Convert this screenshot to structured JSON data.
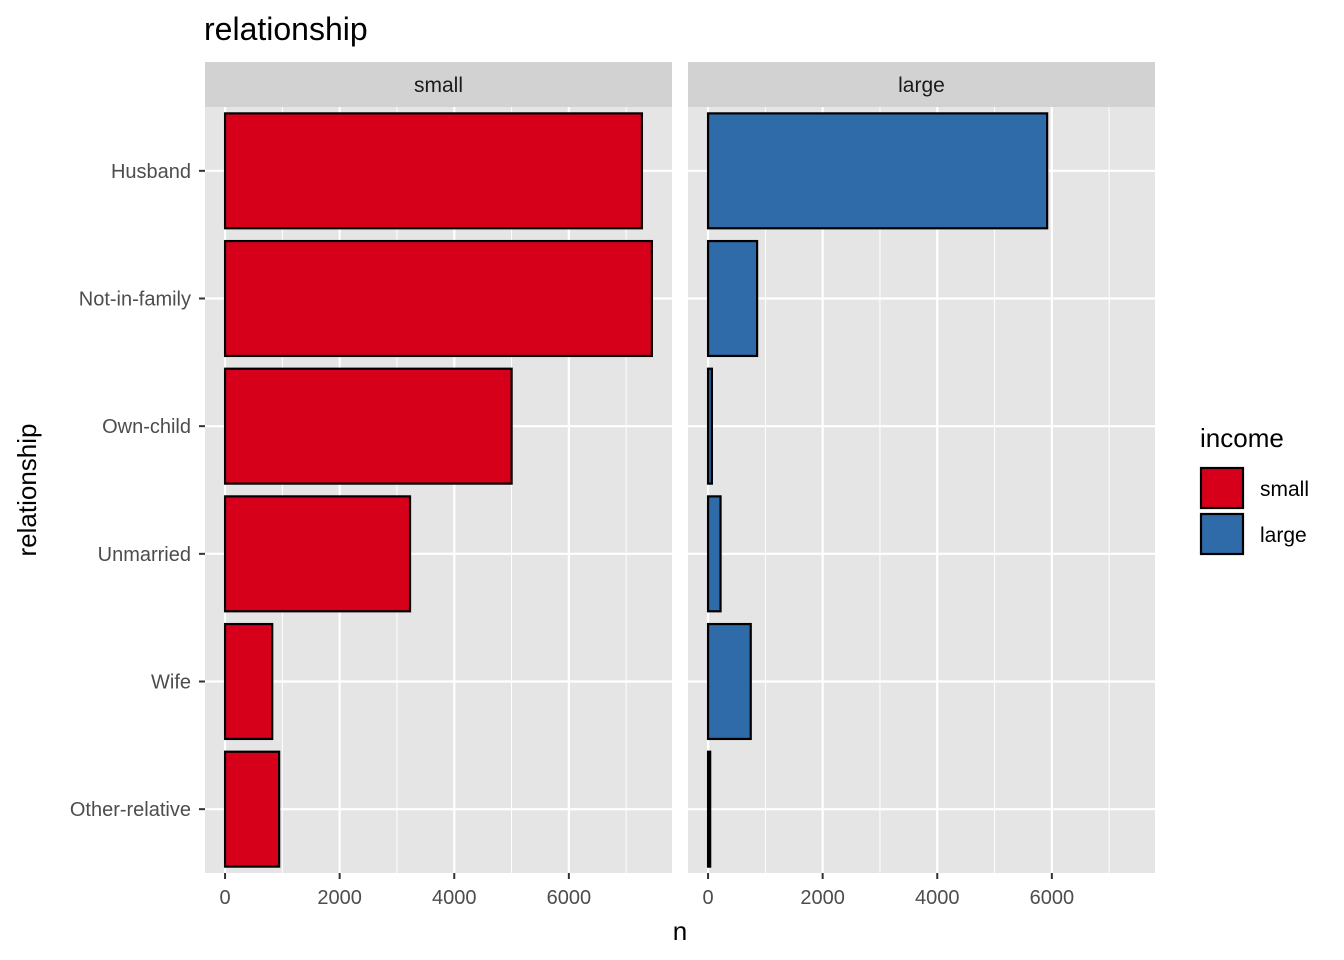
{
  "chart_data": {
    "type": "bar",
    "orientation": "horizontal",
    "title": "relationship",
    "xlabel": "n",
    "ylabel": "relationship",
    "categories": [
      "Husband",
      "Not-in-family",
      "Own-child",
      "Unmarried",
      "Wife",
      "Other-relative"
    ],
    "facet_by": "income",
    "facets": [
      {
        "name": "small",
        "values": [
          7275,
          7449,
          5001,
          3228,
          823,
          944
        ]
      },
      {
        "name": "large",
        "values": [
          5918,
          856,
          67,
          218,
          745,
          37
        ]
      }
    ],
    "xlim": [
      -350,
      7800
    ],
    "xticks": [
      0,
      2000,
      4000,
      6000
    ],
    "grid": true,
    "legend": {
      "title": "income",
      "position": "right",
      "entries": [
        "small",
        "large"
      ]
    },
    "colors": {
      "small": "#D7001A",
      "large": "#2E6BA8",
      "panel_bg": "#E5E5E5",
      "strip_bg": "#D2D2D2",
      "grid": "#FFFFFF",
      "bar_outline": "#000000"
    }
  }
}
